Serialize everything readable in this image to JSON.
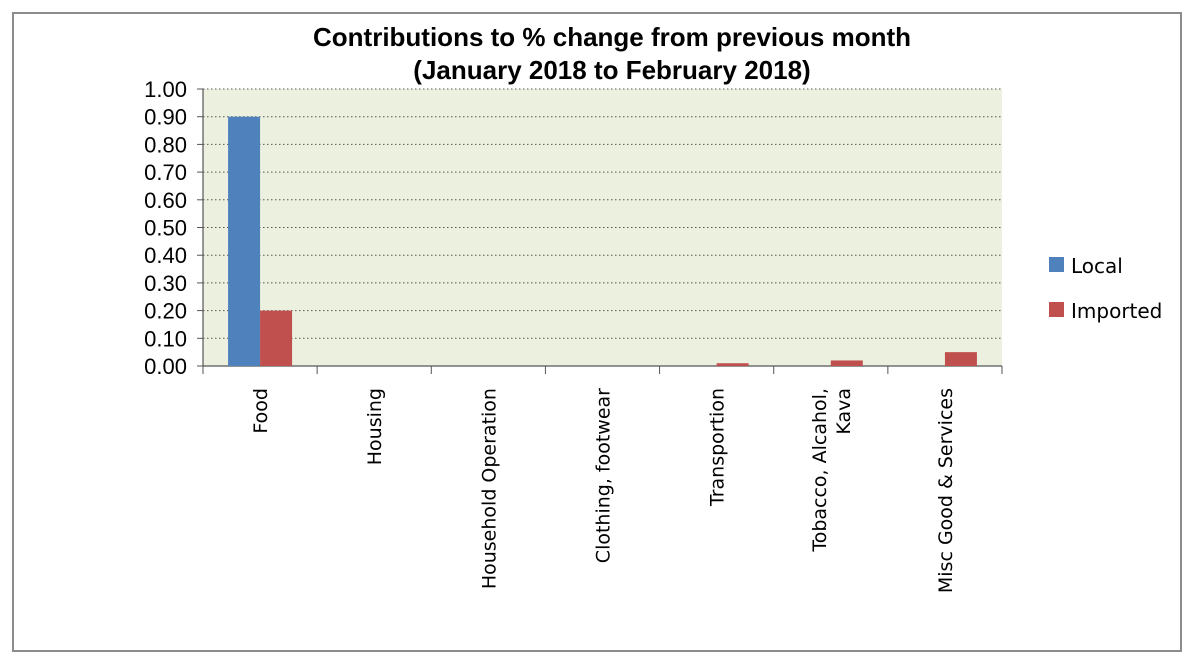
{
  "chart_data": {
    "type": "bar",
    "title": "Contributions to % change from previous month",
    "subtitle": "(January 2018 to February 2018)",
    "categories": [
      "Food",
      "Housing",
      "Household Operation",
      "Clothing, footwear",
      "Transportion",
      "Tobacco, Alcahol, Kava",
      "Misc Good & Services"
    ],
    "category_lines": [
      [
        "Food"
      ],
      [
        "Housing"
      ],
      [
        "Household Operation"
      ],
      [
        "Clothing, footwear"
      ],
      [
        "Transportion"
      ],
      [
        "Tobacco, Alcahol,",
        "Kava"
      ],
      [
        "Misc Good & Services"
      ]
    ],
    "series": [
      {
        "name": "Local",
        "color": "#4f81bd",
        "values": [
          0.9,
          0,
          0,
          0,
          0,
          0,
          0
        ]
      },
      {
        "name": "Imported",
        "color": "#c0504d",
        "values": [
          0.2,
          0,
          0,
          0,
          0.01,
          0.02,
          0.05
        ]
      }
    ],
    "yticks": [
      "0.00",
      "0.10",
      "0.20",
      "0.30",
      "0.40",
      "0.50",
      "0.60",
      "0.70",
      "0.80",
      "0.90",
      "1.00"
    ],
    "ylim": [
      0,
      1.0
    ],
    "grid": true,
    "grid_style": "dotted",
    "plot_background": "#ebf1de",
    "legend_position": "right"
  }
}
